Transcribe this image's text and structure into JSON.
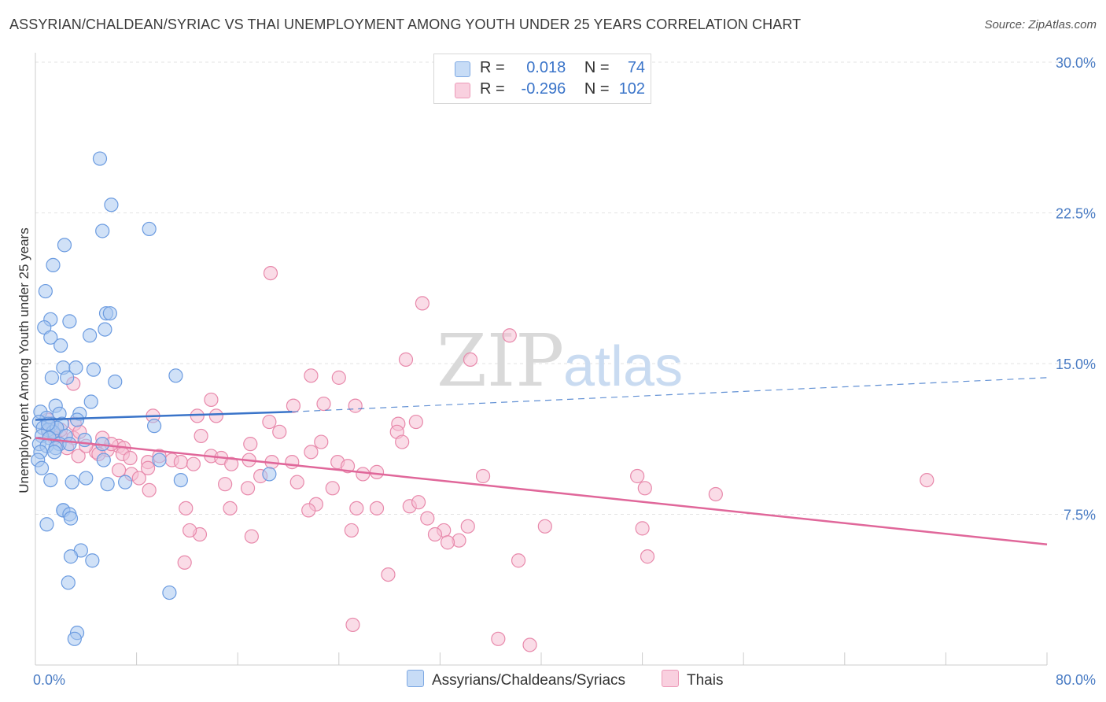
{
  "header": {
    "title": "ASSYRIAN/CHALDEAN/SYRIAC VS THAI UNEMPLOYMENT AMONG YOUTH UNDER 25 YEARS CORRELATION CHART",
    "source": "Source: ZipAtlas.com"
  },
  "legend": {
    "rows": [
      {
        "r_label": "R =",
        "r_value": "0.018",
        "n_label": "N =",
        "n_value": "74"
      },
      {
        "r_label": "R =",
        "r_value": "-0.296",
        "n_label": "N =",
        "n_value": "102"
      }
    ]
  },
  "bottom_legend": {
    "series1": "Assyrians/Chaldeans/Syriacs",
    "series2": "Thais"
  },
  "watermark": {
    "zip": "ZIP",
    "atlas": "atlas"
  },
  "colors": {
    "blue_fill": "#a9c8f0",
    "blue_stroke": "#6b9be0",
    "blue_line": "#3a74c9",
    "pink_fill": "#f6bfd3",
    "pink_stroke": "#e889ab",
    "pink_line": "#e0679a",
    "tick_text": "#4a7cc4",
    "grid": "#e3e3e3"
  },
  "chart_data": {
    "type": "scatter",
    "title": "ASSYRIAN/CHALDEAN/SYRIAC VS THAI UNEMPLOYMENT AMONG YOUTH UNDER 25 YEARS CORRELATION CHART",
    "xlabel": "",
    "ylabel": "Unemployment Among Youth under 25 years",
    "xlim": [
      0,
      80
    ],
    "ylim": [
      0,
      30
    ],
    "x_tick_labels": [
      "0.0%",
      "80.0%"
    ],
    "y_ticks": [
      7.5,
      15.0,
      22.5,
      30.0
    ],
    "y_tick_labels": [
      "7.5%",
      "15.0%",
      "22.5%",
      "30.0%"
    ],
    "grid": true,
    "legend_position": "top-center",
    "series": [
      {
        "name": "Assyrians/Chaldeans/Syriacs",
        "color": "#a9c8f0",
        "r": "0.018",
        "n": "74",
        "trend": {
          "x": [
            0,
            20.3
          ],
          "y": [
            12.2,
            12.6
          ],
          "dashed_extension_to": [
            80,
            14.3
          ]
        },
        "points": [
          [
            5.1,
            25.2
          ],
          [
            6.0,
            22.9
          ],
          [
            5.3,
            21.6
          ],
          [
            9.0,
            21.7
          ],
          [
            2.3,
            20.9
          ],
          [
            1.4,
            19.9
          ],
          [
            0.8,
            18.6
          ],
          [
            1.2,
            17.2
          ],
          [
            2.7,
            17.1
          ],
          [
            5.6,
            17.5
          ],
          [
            5.9,
            17.5
          ],
          [
            0.7,
            16.8
          ],
          [
            1.2,
            16.3
          ],
          [
            4.3,
            16.4
          ],
          [
            5.5,
            16.7
          ],
          [
            2.0,
            15.9
          ],
          [
            2.2,
            14.8
          ],
          [
            3.2,
            14.8
          ],
          [
            4.6,
            14.7
          ],
          [
            1.3,
            14.3
          ],
          [
            2.5,
            14.3
          ],
          [
            6.3,
            14.1
          ],
          [
            11.1,
            14.4
          ],
          [
            4.4,
            13.1
          ],
          [
            1.6,
            12.9
          ],
          [
            1.9,
            12.5
          ],
          [
            3.5,
            12.5
          ],
          [
            0.4,
            12.6
          ],
          [
            0.9,
            12.3
          ],
          [
            0.3,
            12.1
          ],
          [
            1.3,
            12.0
          ],
          [
            2.1,
            12.0
          ],
          [
            3.3,
            12.2
          ],
          [
            9.4,
            11.9
          ],
          [
            0.6,
            11.8
          ],
          [
            1.0,
            11.7
          ],
          [
            1.4,
            11.6
          ],
          [
            1.7,
            11.8
          ],
          [
            2.4,
            11.4
          ],
          [
            0.5,
            11.4
          ],
          [
            1.1,
            11.3
          ],
          [
            1.9,
            11.0
          ],
          [
            2.7,
            11.0
          ],
          [
            0.3,
            11.0
          ],
          [
            0.9,
            10.9
          ],
          [
            1.6,
            10.8
          ],
          [
            3.9,
            11.2
          ],
          [
            5.3,
            11.0
          ],
          [
            0.4,
            10.6
          ],
          [
            1.5,
            10.6
          ],
          [
            0.2,
            10.2
          ],
          [
            5.4,
            10.2
          ],
          [
            9.8,
            10.2
          ],
          [
            0.5,
            9.8
          ],
          [
            1.2,
            9.2
          ],
          [
            2.9,
            9.1
          ],
          [
            5.7,
            9.0
          ],
          [
            7.1,
            9.1
          ],
          [
            11.5,
            9.2
          ],
          [
            18.5,
            9.5
          ],
          [
            2.2,
            7.7
          ],
          [
            2.2,
            7.7
          ],
          [
            2.7,
            7.5
          ],
          [
            2.8,
            7.3
          ],
          [
            0.9,
            7.0
          ],
          [
            3.6,
            5.7
          ],
          [
            2.8,
            5.4
          ],
          [
            4.5,
            5.2
          ],
          [
            2.6,
            4.1
          ],
          [
            10.6,
            3.6
          ],
          [
            3.3,
            1.6
          ],
          [
            3.1,
            1.3
          ],
          [
            4.0,
            9.3
          ],
          [
            1.0,
            12.0
          ]
        ]
      },
      {
        "name": "Thais",
        "color": "#f6bfd3",
        "r": "-0.296",
        "n": "102",
        "trend": {
          "x": [
            0,
            80
          ],
          "y": [
            11.3,
            6.0
          ]
        },
        "points": [
          [
            18.6,
            19.5
          ],
          [
            30.6,
            18.0
          ],
          [
            37.5,
            16.4
          ],
          [
            29.3,
            15.2
          ],
          [
            34.4,
            15.2
          ],
          [
            21.8,
            14.4
          ],
          [
            24.0,
            14.3
          ],
          [
            3.0,
            14.0
          ],
          [
            13.9,
            13.2
          ],
          [
            22.8,
            13.0
          ],
          [
            20.4,
            12.9
          ],
          [
            25.3,
            12.9
          ],
          [
            9.3,
            12.4
          ],
          [
            12.8,
            12.4
          ],
          [
            14.3,
            12.4
          ],
          [
            18.5,
            12.1
          ],
          [
            28.7,
            12.0
          ],
          [
            30.1,
            12.1
          ],
          [
            1.0,
            12.2
          ],
          [
            3.1,
            12.0
          ],
          [
            19.3,
            11.6
          ],
          [
            22.6,
            11.1
          ],
          [
            28.6,
            11.6
          ],
          [
            29.0,
            11.1
          ],
          [
            13.1,
            11.4
          ],
          [
            17.0,
            11.0
          ],
          [
            1.0,
            11.6
          ],
          [
            2.0,
            11.4
          ],
          [
            3.0,
            11.3
          ],
          [
            5.3,
            11.3
          ],
          [
            6.6,
            10.9
          ],
          [
            7.0,
            10.8
          ],
          [
            4.8,
            10.6
          ],
          [
            3.4,
            10.4
          ],
          [
            5.7,
            10.7
          ],
          [
            6.9,
            10.5
          ],
          [
            7.5,
            10.3
          ],
          [
            8.9,
            10.1
          ],
          [
            9.8,
            10.4
          ],
          [
            10.8,
            10.2
          ],
          [
            11.5,
            10.1
          ],
          [
            12.5,
            10.0
          ],
          [
            13.9,
            10.4
          ],
          [
            14.7,
            10.3
          ],
          [
            15.5,
            10.0
          ],
          [
            16.9,
            10.2
          ],
          [
            18.7,
            10.1
          ],
          [
            20.3,
            10.1
          ],
          [
            21.8,
            10.6
          ],
          [
            23.9,
            10.1
          ],
          [
            24.7,
            9.9
          ],
          [
            25.9,
            9.5
          ],
          [
            27.0,
            9.6
          ],
          [
            17.8,
            9.4
          ],
          [
            15.0,
            9.0
          ],
          [
            16.8,
            8.8
          ],
          [
            20.7,
            9.1
          ],
          [
            23.5,
            8.8
          ],
          [
            8.9,
            9.8
          ],
          [
            7.6,
            9.5
          ],
          [
            6.6,
            9.7
          ],
          [
            8.2,
            9.3
          ],
          [
            9.0,
            8.7
          ],
          [
            35.4,
            9.4
          ],
          [
            47.6,
            9.4
          ],
          [
            48.2,
            8.8
          ],
          [
            53.8,
            8.5
          ],
          [
            70.5,
            9.2
          ],
          [
            11.9,
            7.8
          ],
          [
            15.4,
            7.8
          ],
          [
            22.2,
            8.0
          ],
          [
            21.6,
            7.7
          ],
          [
            25.4,
            7.8
          ],
          [
            27.0,
            7.8
          ],
          [
            29.6,
            7.9
          ],
          [
            30.3,
            8.1
          ],
          [
            31.0,
            7.3
          ],
          [
            32.3,
            6.7
          ],
          [
            34.2,
            6.9
          ],
          [
            33.5,
            6.2
          ],
          [
            32.6,
            6.1
          ],
          [
            31.6,
            6.5
          ],
          [
            25.0,
            6.7
          ],
          [
            17.1,
            6.4
          ],
          [
            13.0,
            6.5
          ],
          [
            12.2,
            6.7
          ],
          [
            48.0,
            6.8
          ],
          [
            48.4,
            5.4
          ],
          [
            38.2,
            5.2
          ],
          [
            11.8,
            5.1
          ],
          [
            27.9,
            4.5
          ],
          [
            40.3,
            6.9
          ],
          [
            25.1,
            2.0
          ],
          [
            36.6,
            1.3
          ],
          [
            39.1,
            1.0
          ],
          [
            3.5,
            11.6
          ],
          [
            2.0,
            11.7
          ],
          [
            1.5,
            11.3
          ],
          [
            2.5,
            10.8
          ],
          [
            4.0,
            10.9
          ],
          [
            5.0,
            10.5
          ],
          [
            6.0,
            11.0
          ]
        ]
      }
    ]
  }
}
